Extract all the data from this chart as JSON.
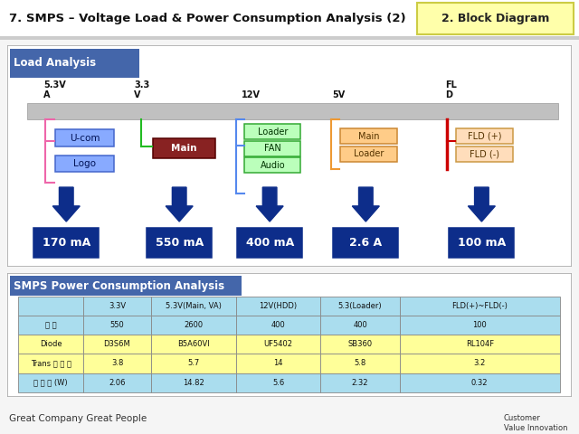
{
  "title": "7. SMPS – Voltage Load & Power Consumption Analysis (2)",
  "block_diagram_label": "2. Block Diagram",
  "load_analysis_title": "Load Analysis",
  "smps_title": "SMPS Power Consumption Analysis",
  "footer_left": "Great Company Great People",
  "table_headers": [
    "",
    "3.3V",
    "5.3V(Main, VA)",
    "12V(HDD)",
    "5.3(Loader)",
    "FLD(+)~FLD(-)"
  ],
  "table_row1": [
    "히 류",
    "550",
    "2600",
    "400",
    "400",
    "100"
  ],
  "table_row2": [
    "Diode",
    "D3S6M",
    "B5A60VI",
    "UF5402",
    "SB360",
    "RL104F"
  ],
  "table_row3": [
    "Trans 히 류 수",
    "3.8",
    "5.7",
    "14",
    "5.8",
    "3.2"
  ],
  "table_row4": [
    "히 류 수 (W)",
    "2.06",
    "14.82",
    "5.6",
    "2.32",
    "0.32"
  ],
  "current_labels": [
    "170 mA",
    "550 mA",
    "400 mA",
    "2.6 A",
    "100 mA"
  ],
  "bg_color": "#f5f5f5",
  "white": "#ffffff",
  "panel_border": "#aaaaaa",
  "header_blue": "#4466aa",
  "arrow_dark_blue": "#0d2d8a",
  "current_box_blue": "#0d2d8a",
  "bar_gray": "#b0b0b0",
  "cyan_row": "#aaddee",
  "yellow_row": "#ffff99",
  "table_border": "#888888"
}
